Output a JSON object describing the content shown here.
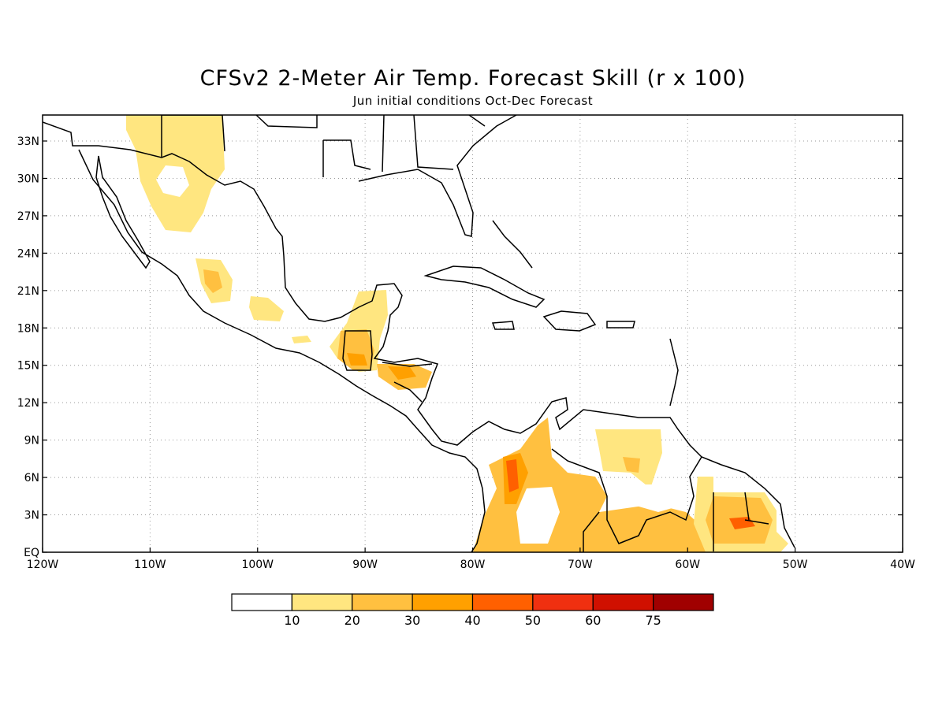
{
  "title": "CFSv2 2-Meter Air Temp. Forecast Skill (r x 100)",
  "subtitle": "Jun initial conditions  Oct-Dec Forecast",
  "map": {
    "lon_ticks": [
      "120W",
      "110W",
      "100W",
      "90W",
      "80W",
      "70W",
      "60W",
      "50W",
      "40W"
    ],
    "lat_ticks": [
      "EQ",
      "3N",
      "6N",
      "9N",
      "12N",
      "15N",
      "18N",
      "21N",
      "24N",
      "27N",
      "30N",
      "33N"
    ]
  },
  "legend": {
    "labels": [
      "10",
      "20",
      "30",
      "40",
      "50",
      "60",
      "75"
    ],
    "colors": [
      "#ffffff",
      "#ffe680",
      "#ffc040",
      "#ffa000",
      "#ff6000",
      "#f03010",
      "#d01000",
      "#a00000"
    ]
  }
}
